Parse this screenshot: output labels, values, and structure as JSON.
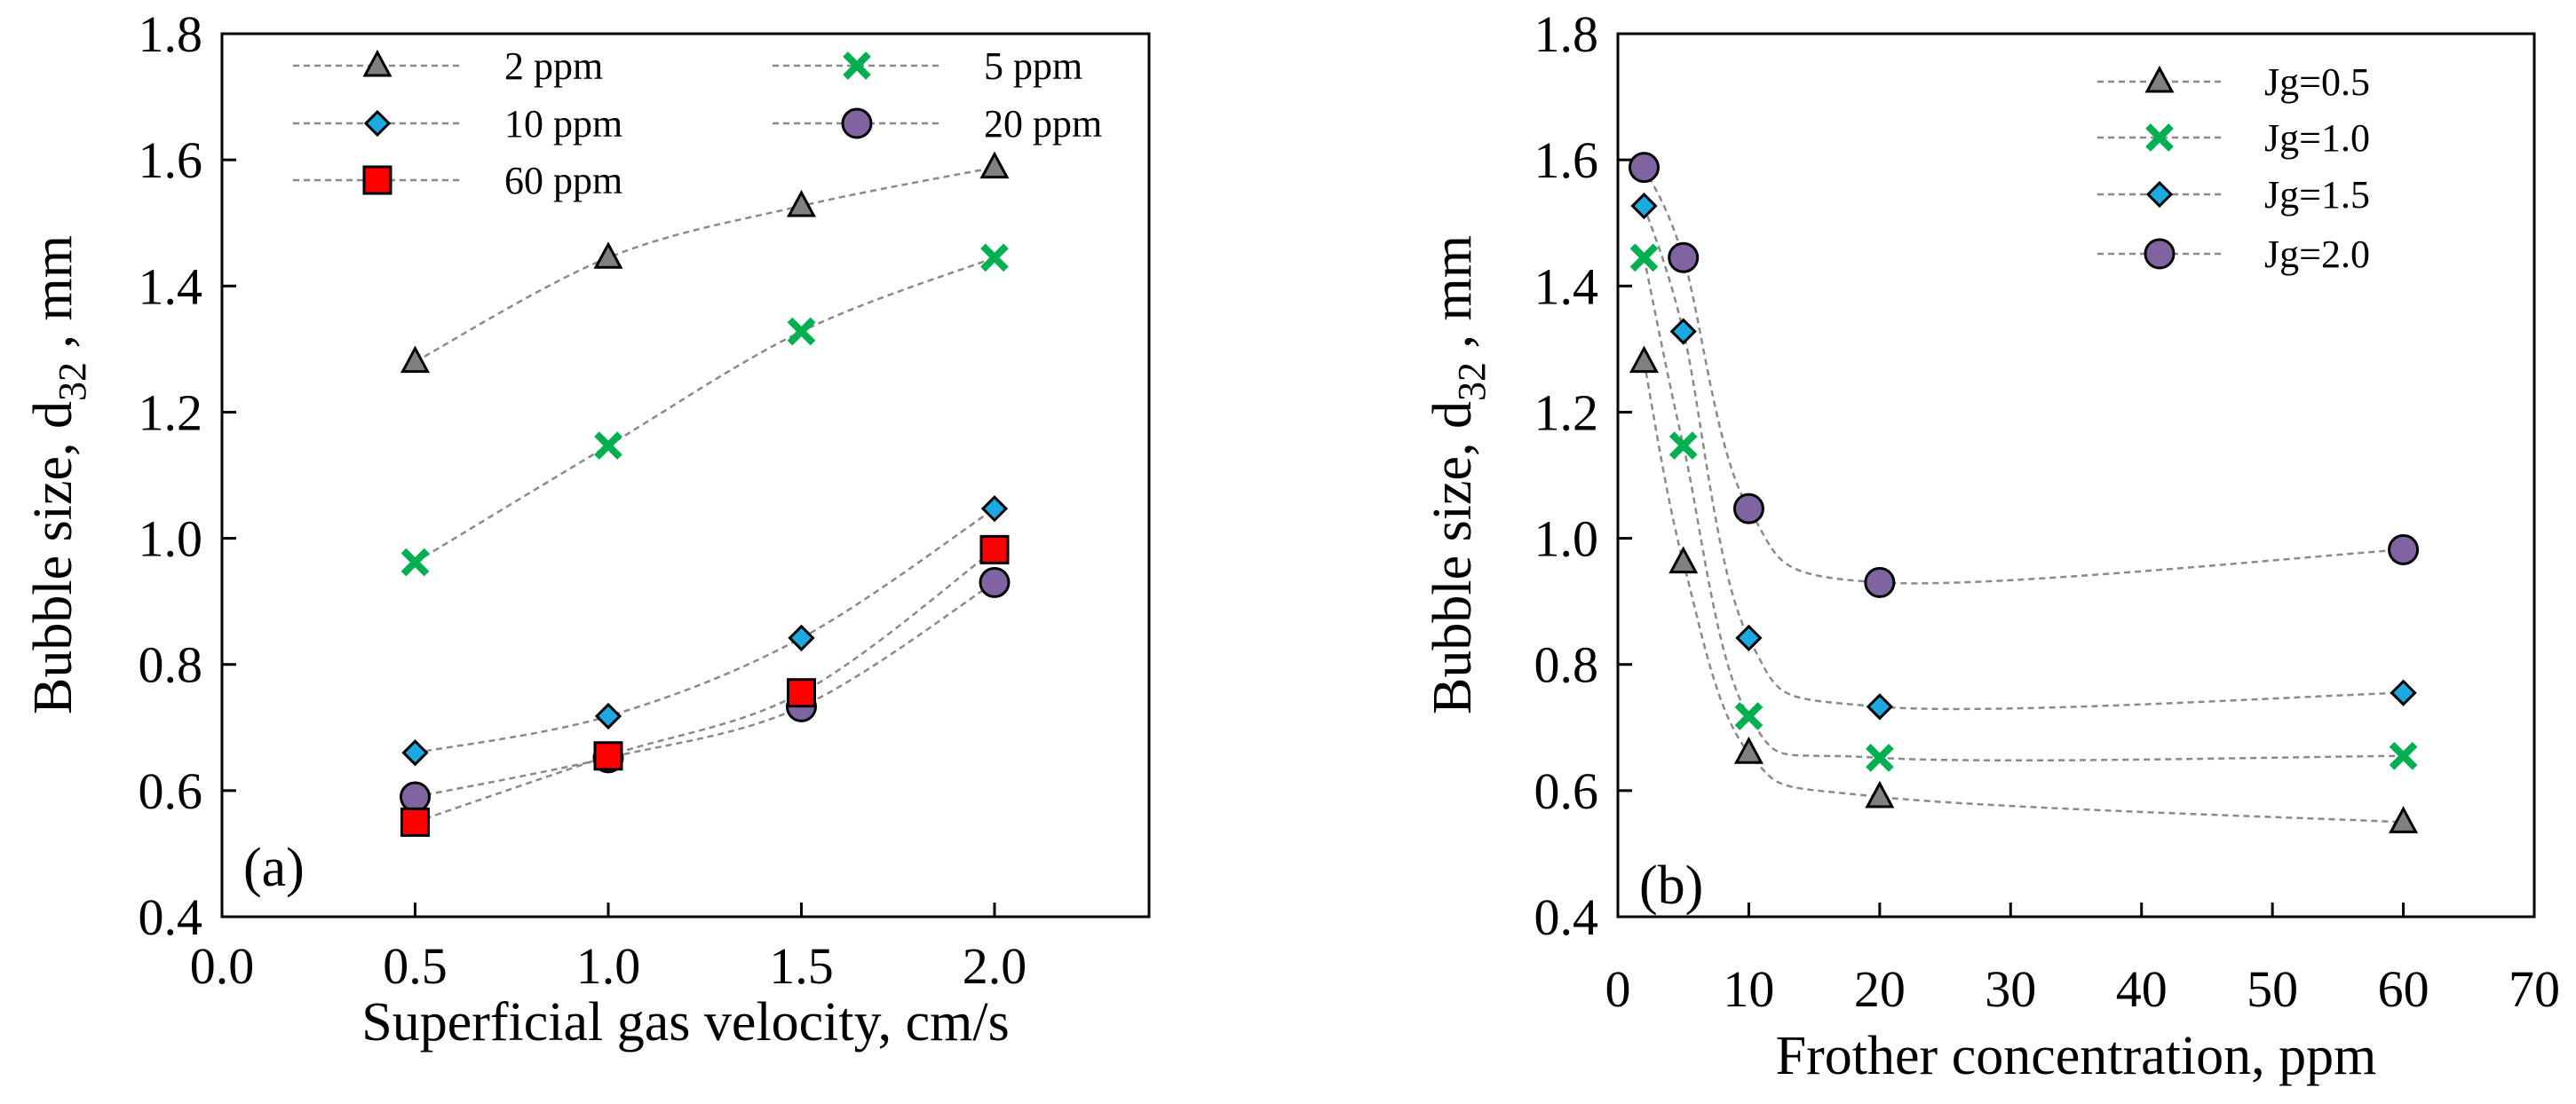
{
  "chart_data": [
    {
      "type": "scatter",
      "panel_label": "(a)",
      "xlabel": "Superficial gas velocity, cm/s",
      "ylabel": {
        "main": "Bubble size, d",
        "sub": "32",
        "suffix": " , mm"
      },
      "xlim": [
        0.0,
        2.4
      ],
      "ylim": [
        0.4,
        1.8
      ],
      "xticks": [
        0.0,
        0.5,
        1.0,
        1.5,
        2.0
      ],
      "xtick_labels": [
        "0.0",
        "0.5",
        "1.0",
        "1.5",
        "2.0"
      ],
      "yticks": [
        0.4,
        0.6,
        0.8,
        1.0,
        1.2,
        1.4,
        1.6,
        1.8
      ],
      "ytick_labels": [
        "0.4",
        "0.6",
        "0.8",
        "1.0",
        "1.2",
        "1.4",
        "1.6",
        "1.8"
      ],
      "grid": false,
      "legend_position": "top",
      "series": [
        {
          "name": "2 ppm",
          "marker": "triangle",
          "color": "#808080",
          "x": [
            0.5,
            1.0,
            1.5,
            2.0
          ],
          "y": [
            1.28,
            1.445,
            1.527,
            1.588
          ]
        },
        {
          "name": "5 ppm",
          "marker": "cross",
          "color": "#00b050",
          "x": [
            0.5,
            1.0,
            1.5,
            2.0
          ],
          "y": [
            0.962,
            1.147,
            1.328,
            1.445
          ]
        },
        {
          "name": "10 ppm",
          "marker": "diamond",
          "color": "#1ca8e0",
          "x": [
            0.5,
            1.0,
            1.5,
            2.0
          ],
          "y": [
            0.66,
            0.718,
            0.842,
            1.047
          ]
        },
        {
          "name": "20 ppm",
          "marker": "circle",
          "color": "#8064a2",
          "x": [
            0.5,
            1.0,
            1.5,
            2.0
          ],
          "y": [
            0.59,
            0.652,
            0.733,
            0.93
          ]
        },
        {
          "name": "60 ppm",
          "marker": "square",
          "color": "#ff0000",
          "x": [
            0.5,
            1.0,
            1.5,
            2.0
          ],
          "y": [
            0.55,
            0.655,
            0.755,
            0.982
          ]
        }
      ]
    },
    {
      "type": "scatter",
      "panel_label": "(b)",
      "xlabel": "Frother concentration, ppm",
      "ylabel": {
        "main": "Bubble size, d",
        "sub": "32",
        "suffix": " , mm"
      },
      "xlim": [
        0,
        70
      ],
      "ylim": [
        0.4,
        1.8
      ],
      "xticks": [
        0,
        10,
        20,
        30,
        40,
        50,
        60,
        70
      ],
      "xtick_labels": [
        "0",
        "10",
        "20",
        "30",
        "40",
        "50",
        "60",
        "70"
      ],
      "yticks": [
        0.4,
        0.6,
        0.8,
        1.0,
        1.2,
        1.4,
        1.6,
        1.8
      ],
      "ytick_labels": [
        "0.4",
        "0.6",
        "0.8",
        "1.0",
        "1.2",
        "1.4",
        "1.6",
        "1.8"
      ],
      "grid": false,
      "legend_position": "top-right",
      "series": [
        {
          "name": "Jg=0.5",
          "marker": "triangle",
          "color": "#808080",
          "x": [
            2,
            5,
            10,
            20,
            60
          ],
          "y": [
            1.28,
            0.962,
            0.66,
            0.59,
            0.55
          ]
        },
        {
          "name": "Jg=1.0",
          "marker": "cross",
          "color": "#00b050",
          "x": [
            2,
            5,
            10,
            20,
            60
          ],
          "y": [
            1.445,
            1.147,
            0.718,
            0.652,
            0.655
          ]
        },
        {
          "name": "Jg=1.5",
          "marker": "diamond",
          "color": "#1ca8e0",
          "x": [
            2,
            5,
            10,
            20,
            60
          ],
          "y": [
            1.527,
            1.328,
            0.842,
            0.733,
            0.755
          ]
        },
        {
          "name": "Jg=2.0",
          "marker": "circle",
          "color": "#8064a2",
          "x": [
            2,
            5,
            10,
            20,
            60
          ],
          "y": [
            1.588,
            1.445,
            1.047,
            0.93,
            0.982
          ]
        }
      ]
    }
  ]
}
